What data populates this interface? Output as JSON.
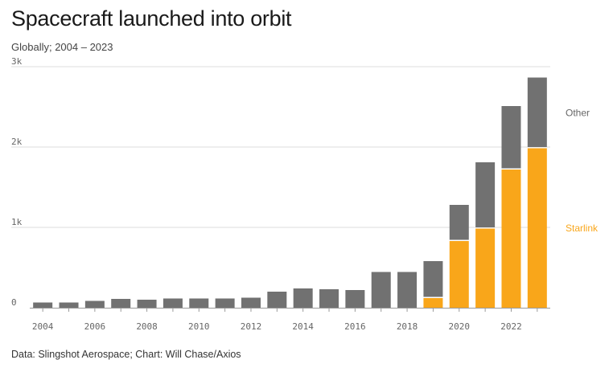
{
  "title": "Spacecraft launched into orbit",
  "subtitle": "Globally; 2004 – 2023",
  "source": "Data: Slingshot Aerospace; Chart: Will Chase/Axios",
  "colors": {
    "other": "#717171",
    "starlink": "#f9a61a",
    "grid": "#dddddd",
    "axis": "#9a9a9a"
  },
  "chart_data": {
    "type": "bar",
    "stacked": true,
    "categories": [
      "2004",
      "2005",
      "2006",
      "2007",
      "2008",
      "2009",
      "2010",
      "2011",
      "2012",
      "2013",
      "2014",
      "2015",
      "2016",
      "2017",
      "2018",
      "2019",
      "2020",
      "2021",
      "2022",
      "2023"
    ],
    "series": [
      {
        "name": "Starlink",
        "values": [
          0,
          0,
          0,
          0,
          0,
          0,
          0,
          0,
          0,
          0,
          0,
          0,
          0,
          0,
          0,
          120,
          830,
          985,
          1720,
          1985
        ]
      },
      {
        "name": "Other",
        "values": [
          65,
          65,
          85,
          110,
          100,
          115,
          115,
          115,
          125,
          200,
          240,
          230,
          220,
          445,
          445,
          460,
          450,
          825,
          790,
          880
        ]
      }
    ],
    "ylim": [
      0,
      3000
    ],
    "yticks": [
      0,
      1000,
      2000,
      3000
    ],
    "ytick_labels": [
      "0",
      "1k",
      "2k",
      "3k"
    ],
    "xtick_labels": [
      "2004",
      "2006",
      "2008",
      "2010",
      "2012",
      "2014",
      "2016",
      "2018",
      "2020",
      "2022"
    ],
    "legend_placement": "right",
    "grid": true
  }
}
